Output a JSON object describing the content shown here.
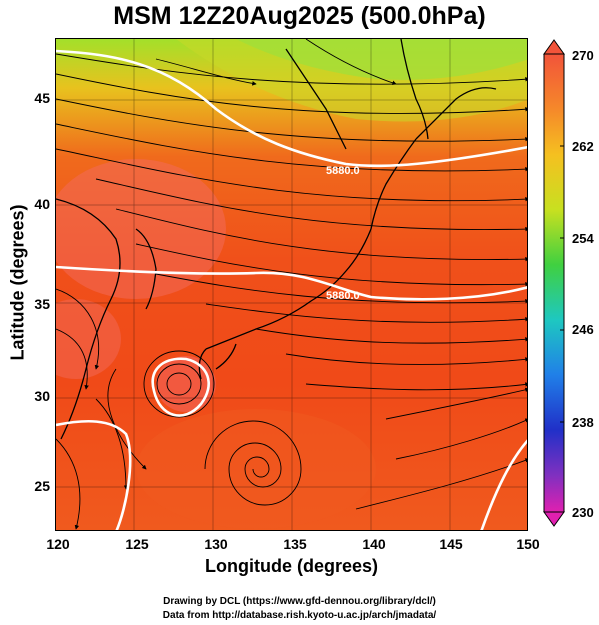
{
  "title": "MSM 12Z20Aug2025 (500.0hPa)",
  "axes": {
    "xlabel": "Longitude (degrees)",
    "ylabel": "Latitude  (degrees)",
    "x_ticks": [
      "120",
      "125",
      "130",
      "135",
      "140",
      "145",
      "150"
    ],
    "y_ticks": [
      "25",
      "30",
      "35",
      "40",
      "45"
    ]
  },
  "colorbar": {
    "labels": [
      "270",
      "262",
      "254",
      "246",
      "238",
      "230"
    ],
    "colors": [
      "#f2543a",
      "#f5a020",
      "#d4e020",
      "#4ad040",
      "#1ec8c0",
      "#2080e8",
      "#2030c8",
      "#a030c0",
      "#e020b0"
    ]
  },
  "contour_labels": [
    "5880.0",
    "5880.0"
  ],
  "colors": {
    "warm": "#f04a18",
    "cool": "#a3e02a",
    "contour": "#ffffff",
    "streamline": "#000000"
  },
  "credits": {
    "line1": "Drawing by DCL (https://www.gfd-dennou.org/library/dcl/)",
    "line2": "Data from http://database.rish.kyoto-u.ac.jp/arch/jmadata/"
  }
}
